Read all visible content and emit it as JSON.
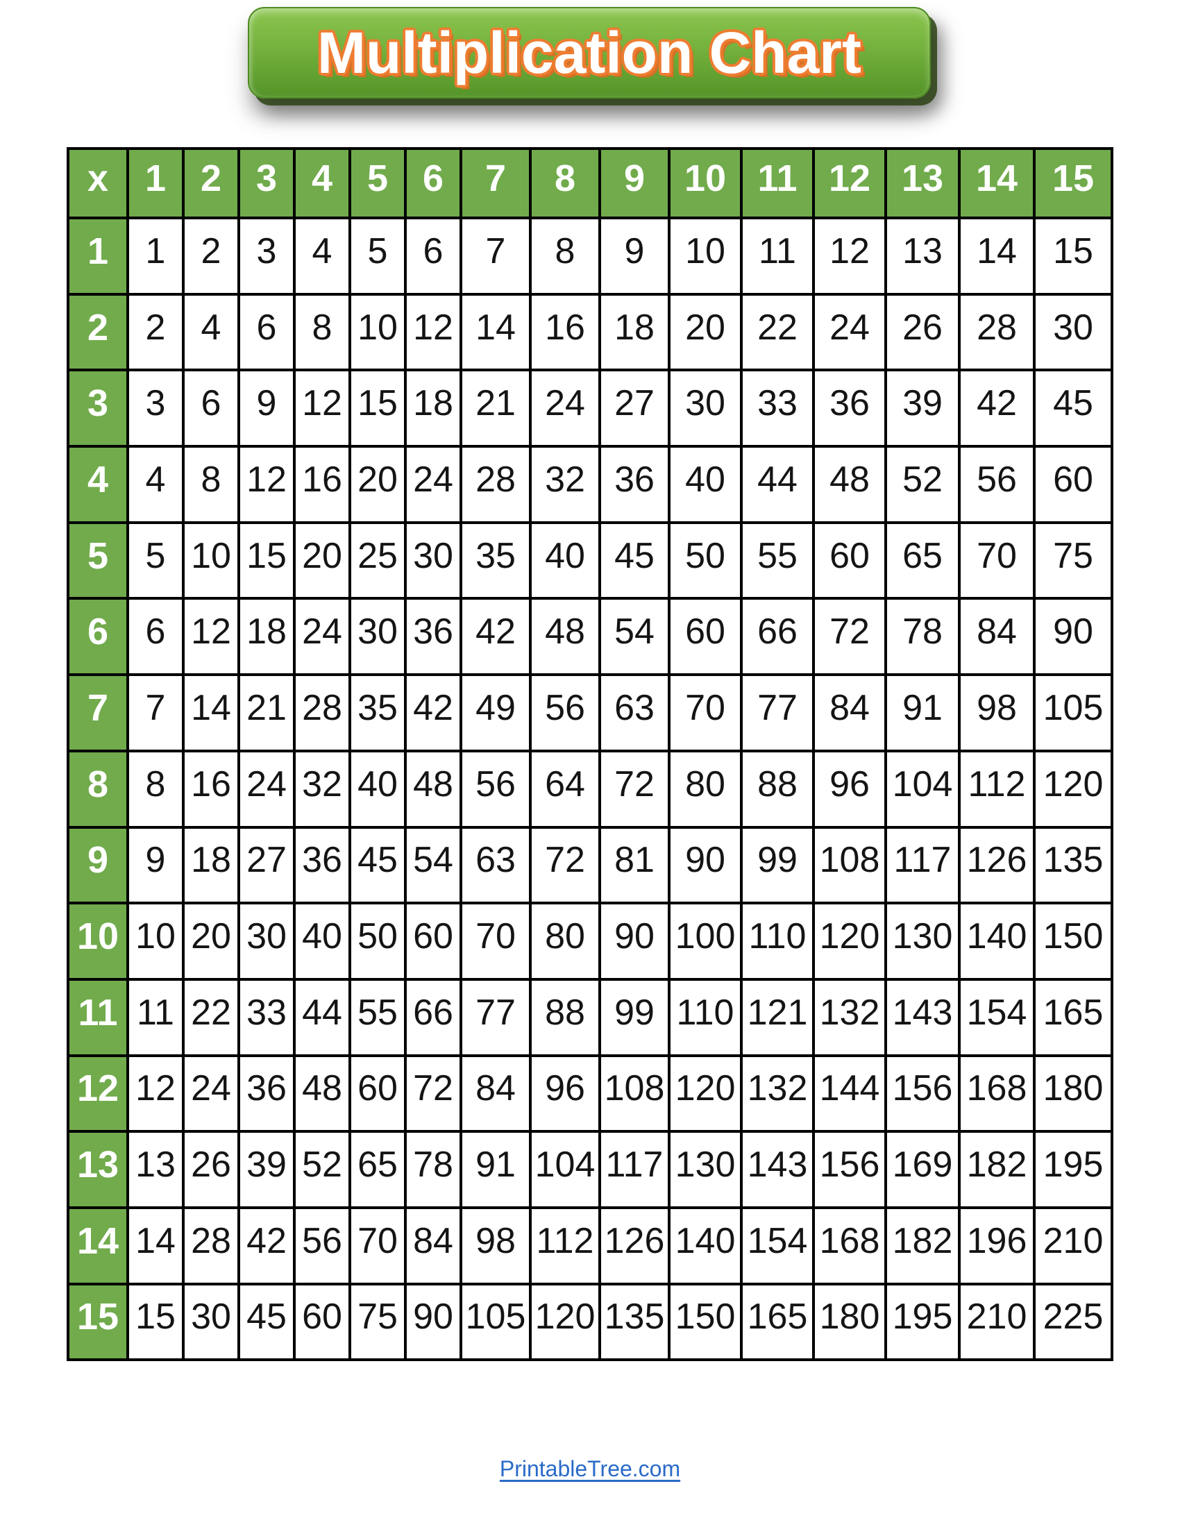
{
  "title": {
    "text": "Multiplication Chart",
    "text_color": "#ffffff",
    "outline_color": "#ED7D31",
    "button_green_top": "#8cc64f",
    "button_green_bottom": "#549428"
  },
  "table": {
    "corner_label": "x",
    "column_headers": [
      "1",
      "2",
      "3",
      "4",
      "5",
      "6",
      "7",
      "8",
      "9",
      "10",
      "11",
      "12",
      "13",
      "14",
      "15"
    ],
    "row_headers": [
      "1",
      "2",
      "3",
      "4",
      "5",
      "6",
      "7",
      "8",
      "9",
      "10",
      "11",
      "12",
      "13",
      "14",
      "15"
    ],
    "rows": [
      [
        1,
        2,
        3,
        4,
        5,
        6,
        7,
        8,
        9,
        10,
        11,
        12,
        13,
        14,
        15
      ],
      [
        2,
        4,
        6,
        8,
        10,
        12,
        14,
        16,
        18,
        20,
        22,
        24,
        26,
        28,
        30
      ],
      [
        3,
        6,
        9,
        12,
        15,
        18,
        21,
        24,
        27,
        30,
        33,
        36,
        39,
        42,
        45
      ],
      [
        4,
        8,
        12,
        16,
        20,
        24,
        28,
        32,
        36,
        40,
        44,
        48,
        52,
        56,
        60
      ],
      [
        5,
        10,
        15,
        20,
        25,
        30,
        35,
        40,
        45,
        50,
        55,
        60,
        65,
        70,
        75
      ],
      [
        6,
        12,
        18,
        24,
        30,
        36,
        42,
        48,
        54,
        60,
        66,
        72,
        78,
        84,
        90
      ],
      [
        7,
        14,
        21,
        28,
        35,
        42,
        49,
        56,
        63,
        70,
        77,
        84,
        91,
        98,
        105
      ],
      [
        8,
        16,
        24,
        32,
        40,
        48,
        56,
        64,
        72,
        80,
        88,
        96,
        104,
        112,
        120
      ],
      [
        9,
        18,
        27,
        36,
        45,
        54,
        63,
        72,
        81,
        90,
        99,
        108,
        117,
        126,
        135
      ],
      [
        10,
        20,
        30,
        40,
        50,
        60,
        70,
        80,
        90,
        100,
        110,
        120,
        130,
        140,
        150
      ],
      [
        11,
        22,
        33,
        44,
        55,
        66,
        77,
        88,
        99,
        110,
        121,
        132,
        143,
        154,
        165
      ],
      [
        12,
        24,
        36,
        48,
        60,
        72,
        84,
        96,
        108,
        120,
        132,
        144,
        156,
        168,
        180
      ],
      [
        13,
        26,
        39,
        52,
        65,
        78,
        91,
        104,
        117,
        130,
        143,
        156,
        169,
        182,
        195
      ],
      [
        14,
        28,
        42,
        56,
        70,
        84,
        98,
        112,
        126,
        140,
        154,
        168,
        182,
        196,
        210
      ],
      [
        15,
        30,
        45,
        60,
        75,
        90,
        105,
        120,
        135,
        150,
        165,
        180,
        195,
        210,
        225
      ]
    ],
    "header_green": "#71AB4C",
    "grid_border_color": "#000000",
    "cell_text_color": "#141414"
  },
  "footer": {
    "link_text": "PrintableTree.com",
    "link_color": "#2A6BC8"
  }
}
